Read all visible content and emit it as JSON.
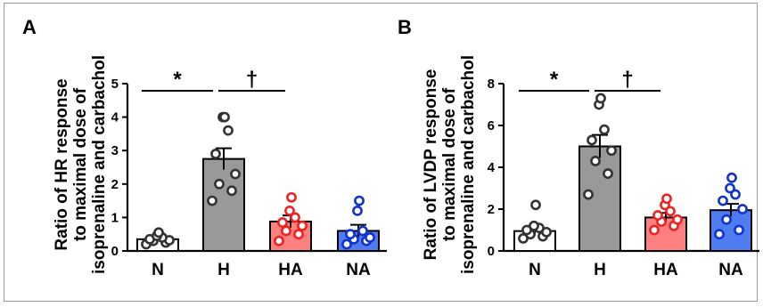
{
  "chart_data": [
    {
      "type": "bar",
      "panel_label": "A",
      "ylabel_lines": [
        "Ratio of HR response",
        "to maximal dose of",
        "isoprenaline and carbachol"
      ],
      "categories": [
        "N",
        "H",
        "HA",
        "NA"
      ],
      "values": [
        0.35,
        2.75,
        0.88,
        0.6
      ],
      "sem": [
        0.05,
        0.32,
        0.18,
        0.18
      ],
      "points": [
        [
          0.2,
          0.25,
          0.3,
          0.32,
          0.35,
          0.4,
          0.45,
          0.55
        ],
        [
          1.5,
          1.8,
          2.0,
          2.3,
          2.9,
          3.6,
          4.0,
          4.0
        ],
        [
          0.3,
          0.5,
          0.6,
          0.75,
          0.85,
          1.0,
          1.2,
          1.6
        ],
        [
          0.2,
          0.3,
          0.35,
          0.4,
          0.5,
          0.6,
          1.2,
          1.5
        ]
      ],
      "ylim": [
        0,
        5
      ],
      "yticks": [
        0,
        1,
        2,
        3,
        4,
        5
      ],
      "ytick_labels": [
        "0",
        "1",
        "2",
        "3",
        "4",
        "5"
      ],
      "bar_colors": [
        "#ffffff",
        "#999999",
        "#ff8080",
        "#4f7cf0"
      ],
      "point_colors": [
        "#333333",
        "#333333",
        "#ee2222",
        "#1133cc"
      ],
      "significance": [
        {
          "symbol": "*",
          "from": "N",
          "to": "H"
        },
        {
          "symbol": "†",
          "from": "H",
          "to": "HA"
        }
      ]
    },
    {
      "type": "bar",
      "panel_label": "B",
      "ylabel_lines": [
        "Ratio of LVDP response",
        "to maximal dose of",
        "isoprenaline and carbachol"
      ],
      "categories": [
        "N",
        "H",
        "HA",
        "NA"
      ],
      "values": [
        0.95,
        5.0,
        1.6,
        1.95
      ],
      "sem": [
        0.15,
        0.55,
        0.22,
        0.3
      ],
      "points": [
        [
          0.6,
          0.7,
          0.8,
          0.9,
          1.0,
          1.1,
          1.2,
          2.2
        ],
        [
          2.7,
          3.7,
          4.3,
          4.8,
          5.3,
          5.8,
          7.0,
          7.3
        ],
        [
          1.0,
          1.2,
          1.4,
          1.5,
          1.7,
          1.9,
          2.2,
          2.5
        ],
        [
          0.8,
          1.0,
          1.5,
          2.0,
          2.4,
          2.7,
          3.0,
          3.5
        ]
      ],
      "ylim": [
        0,
        8
      ],
      "yticks": [
        0,
        2,
        4,
        6,
        8
      ],
      "ytick_labels": [
        "0",
        "2",
        "4",
        "6",
        "8"
      ],
      "bar_colors": [
        "#ffffff",
        "#999999",
        "#ff8080",
        "#4f7cf0"
      ],
      "point_colors": [
        "#333333",
        "#333333",
        "#ee2222",
        "#1133cc"
      ],
      "significance": [
        {
          "symbol": "*",
          "from": "N",
          "to": "H"
        },
        {
          "symbol": "†",
          "from": "H",
          "to": "HA"
        }
      ]
    }
  ]
}
